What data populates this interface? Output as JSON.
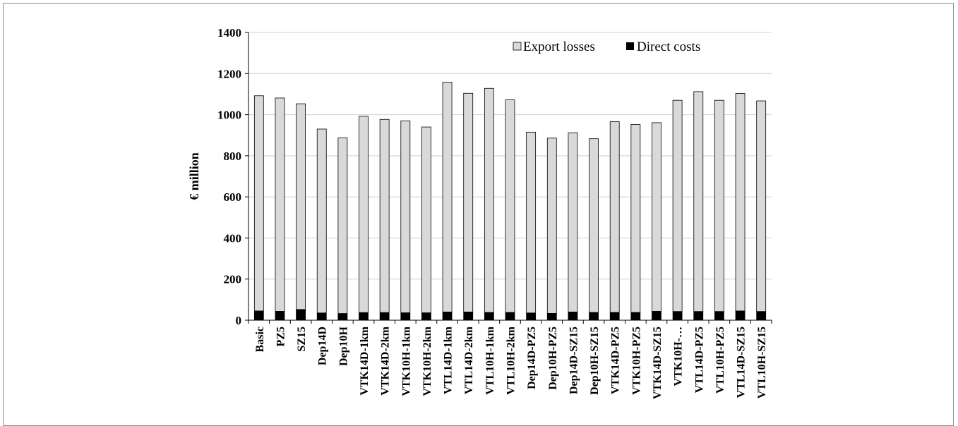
{
  "chart_data": {
    "type": "bar",
    "stacked": true,
    "ylabel": "€ million",
    "xlabel": "",
    "ylim": [
      0,
      1400
    ],
    "yticks": [
      0,
      200,
      400,
      600,
      800,
      1000,
      1200,
      1400
    ],
    "grid": true,
    "legend_position": "top-right",
    "categories": [
      "Basic",
      "PZ5",
      "SZ15",
      "Dep14D",
      "Dep10H",
      "VTK14D-1km",
      "VTK14D-2km",
      "VTK10H-1km",
      "VTK10H-2km",
      "VTL14D-1km",
      "VTL14D-2km",
      "VTL10H-1km",
      "VTL10H-2km",
      "Dep14D-PZ5",
      "Dep10H-PZ5",
      "Dep14D-SZ15",
      "Dep10H-SZ15",
      "VTK14D-PZ5",
      "VTK10H-PZ5",
      "VTK14D-SZ15",
      "VTK10H-…",
      "VTL14D-PZ5",
      "VTL10H-PZ5",
      "VTL14D-SZ15",
      "VTL10H-SZ15"
    ],
    "series": [
      {
        "name": "Direct costs",
        "color": "#000000",
        "values": [
          45,
          43,
          52,
          35,
          32,
          37,
          37,
          36,
          36,
          40,
          40,
          38,
          38,
          35,
          33,
          40,
          38,
          38,
          38,
          43,
          42,
          42,
          42,
          45,
          42
        ]
      },
      {
        "name": "Export losses",
        "color": "#d9d9d9",
        "values": [
          1047,
          1038,
          1001,
          895,
          855,
          955,
          940,
          934,
          904,
          1118,
          1064,
          1090,
          1034,
          880,
          853,
          872,
          845,
          928,
          914,
          918,
          1028,
          1070,
          1028,
          1058,
          1025
        ]
      }
    ]
  }
}
